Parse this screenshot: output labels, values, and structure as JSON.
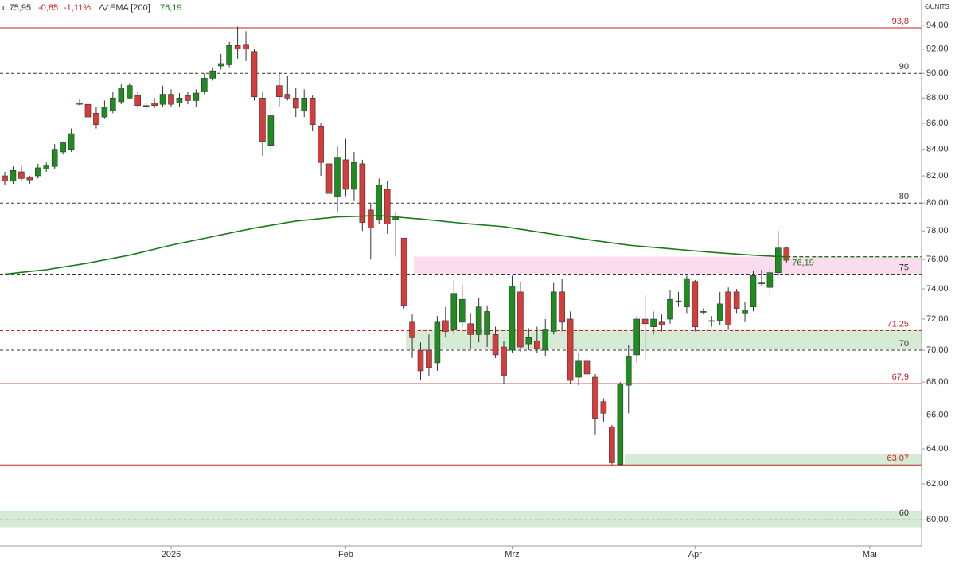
{
  "chart_data": {
    "type": "candlestick",
    "header": {
      "close_label": "c 75,95",
      "change": "-0,85",
      "change_pct": "-1,11%"
    },
    "y_axis_label": "€/UNITS",
    "log_scale": true,
    "ylim": [
      58.6,
      96.2
    ],
    "yticks": [
      {
        "value": 94,
        "label": "94,00"
      },
      {
        "value": 92,
        "label": "92,00"
      },
      {
        "value": 90,
        "label": "90,00"
      },
      {
        "value": 88,
        "label": "88,00"
      },
      {
        "value": 86,
        "label": "86,00"
      },
      {
        "value": 84,
        "label": "84,00"
      },
      {
        "value": 82,
        "label": "82,00"
      },
      {
        "value": 80,
        "label": "80,00"
      },
      {
        "value": 78,
        "label": "78,00"
      },
      {
        "value": 76,
        "label": "76,00"
      },
      {
        "value": 74,
        "label": "74,00"
      },
      {
        "value": 72,
        "label": "72,00"
      },
      {
        "value": 70,
        "label": "70,00"
      },
      {
        "value": 68,
        "label": "68,00"
      },
      {
        "value": 66,
        "label": "66,00"
      },
      {
        "value": 64,
        "label": "64,00"
      },
      {
        "value": 62,
        "label": "62,00"
      },
      {
        "value": 60,
        "label": "60,00"
      }
    ],
    "categories": [
      null,
      null,
      null,
      null,
      null,
      null,
      null,
      null,
      null,
      null,
      null,
      null,
      null,
      null,
      null,
      null,
      null,
      null,
      null,
      null,
      "2026",
      null,
      null,
      null,
      null,
      null,
      null,
      null,
      null,
      null,
      null,
      null,
      null,
      null,
      null,
      null,
      null,
      null,
      null,
      null,
      null,
      "Feb",
      null,
      null,
      null,
      null,
      null,
      null,
      null,
      null,
      null,
      null,
      null,
      null,
      null,
      null,
      null,
      null,
      null,
      null,
      null,
      "Mrz",
      null,
      null,
      null,
      null,
      null,
      null,
      null,
      null,
      null,
      null,
      null,
      null,
      null,
      null,
      null,
      null,
      null,
      null,
      null,
      null,
      null,
      "Apr",
      null,
      null,
      null,
      null,
      null,
      null,
      null,
      null,
      null,
      null,
      null,
      null,
      null,
      null,
      null,
      null,
      null,
      null,
      null,
      null,
      "Mai",
      null,
      null,
      null,
      null,
      null,
      null
    ],
    "up_color": "#1e8c1e",
    "down_color": "#d63c3c",
    "open": [
      82.0,
      81.6,
      82.3,
      81.9,
      82.0,
      82.5,
      82.7,
      83.8,
      84.0,
      87.5,
      87.5,
      86.8,
      86.5,
      87.0,
      87.7,
      88.0,
      88.2,
      87.4,
      87.6,
      87.5,
      88.3,
      87.6,
      88.2,
      87.8,
      88.5,
      89.6,
      90.6,
      90.7,
      92.3,
      92.4,
      91.8,
      88.0,
      84.3,
      89.0,
      88.3,
      88.0,
      87.0,
      88.0,
      85.8,
      82.9,
      80.5,
      83.2,
      81.0,
      82.9,
      79.5,
      78.8,
      81.0,
      78.8,
      77.5,
      71.8,
      70.0,
      70.0,
      69.2,
      71.9,
      71.3,
      71.8,
      71.7,
      71.0,
      71.0,
      71.0,
      70.2,
      70.0,
      73.8,
      70.4,
      70.6,
      70.0,
      71.2,
      73.8,
      72.0,
      68.3,
      69.3,
      68.3,
      66.8,
      65.3,
      63.1,
      67.8,
      69.7,
      72.0,
      71.5,
      71.8,
      72.0,
      73.2,
      72.8,
      74.5,
      72.5,
      71.9,
      71.9,
      73.8,
      73.8,
      72.4,
      72.8,
      74.4,
      74.1,
      75.1,
      76.8,
      null,
      null,
      null,
      null,
      null,
      null,
      null,
      null,
      null,
      null,
      null,
      null,
      null,
      null,
      null,
      null
    ],
    "high": [
      82.3,
      82.7,
      82.8,
      82.0,
      82.9,
      83.0,
      84.4,
      84.6,
      85.6,
      87.9,
      88.5,
      87.3,
      87.8,
      88.5,
      89.1,
      89.2,
      88.5,
      87.6,
      88.0,
      89.0,
      88.7,
      88.4,
      88.5,
      88.7,
      90.0,
      90.5,
      91.6,
      92.6,
      93.9,
      93.5,
      92.0,
      88.5,
      87.5,
      90.1,
      89.8,
      88.8,
      88.7,
      88.2,
      86.0,
      83.0,
      84.2,
      84.8,
      83.8,
      83.2,
      80.0,
      81.8,
      81.6,
      79.3,
      77.5,
      72.3,
      70.5,
      71.0,
      72.2,
      72.8,
      74.6,
      74.3,
      72.4,
      73.4,
      72.9,
      71.5,
      70.6,
      74.9,
      74.5,
      71.4,
      71.5,
      72.0,
      74.4,
      74.7,
      72.5,
      69.8,
      69.8,
      68.5,
      67.0,
      65.4,
      68.0,
      70.3,
      72.2,
      73.6,
      72.5,
      72.3,
      73.9,
      73.8,
      74.9,
      74.6,
      72.7,
      72.2,
      73.8,
      74.1,
      74.0,
      73.1,
      75.2,
      75.3,
      75.5,
      78.0,
      76.9,
      null,
      null,
      null,
      null,
      null,
      null,
      null,
      null,
      null,
      null,
      null,
      null,
      null,
      null,
      null,
      null
    ],
    "low": [
      81.3,
      81.4,
      81.6,
      81.4,
      81.8,
      82.3,
      82.5,
      83.6,
      83.8,
      87.4,
      86.2,
      85.6,
      86.4,
      86.8,
      87.5,
      87.9,
      87.2,
      87.1,
      87.2,
      87.3,
      87.3,
      87.3,
      87.5,
      87.3,
      88.3,
      89.4,
      90.3,
      90.5,
      91.2,
      91.0,
      87.8,
      83.5,
      83.8,
      87.3,
      87.8,
      86.5,
      86.5,
      85.4,
      82.0,
      80.3,
      79.3,
      80.5,
      80.2,
      78.0,
      76.0,
      78.5,
      77.8,
      76.2,
      72.7,
      69.5,
      68.1,
      68.4,
      68.7,
      70.8,
      71.0,
      71.5,
      70.1,
      70.5,
      70.2,
      69.5,
      67.9,
      69.8,
      69.9,
      70.0,
      69.8,
      69.6,
      71.0,
      71.2,
      67.9,
      67.8,
      68.0,
      64.8,
      65.6,
      63.1,
      63.0,
      66.1,
      69.2,
      69.3,
      71.0,
      71.2,
      71.7,
      72.8,
      72.4,
      71.2,
      72.3,
      71.5,
      71.6,
      71.3,
      72.4,
      71.8,
      72.5,
      74.2,
      73.5,
      74.9,
      75.8,
      null,
      null,
      null,
      null,
      null,
      null,
      null,
      null,
      null,
      null,
      null,
      null,
      null,
      null,
      null,
      null
    ],
    "close": [
      81.6,
      82.4,
      81.8,
      81.7,
      82.6,
      82.8,
      84.0,
      84.5,
      85.2,
      87.6,
      86.5,
      85.9,
      87.3,
      88.0,
      88.8,
      89.0,
      87.4,
      87.4,
      87.4,
      88.3,
      87.5,
      88.0,
      87.8,
      88.4,
      89.6,
      90.2,
      90.8,
      92.3,
      92.0,
      92.0,
      88.1,
      84.6,
      86.6,
      88.1,
      88.0,
      87.2,
      88.0,
      85.9,
      83.0,
      80.7,
      83.4,
      81.0,
      83.0,
      78.6,
      78.2,
      81.3,
      78.5,
      79.0,
      72.9,
      70.8,
      68.7,
      68.9,
      71.8,
      71.2,
      73.7,
      73.3,
      71.0,
      72.8,
      72.5,
      69.7,
      68.4,
      74.2,
      70.2,
      70.8,
      70.1,
      71.3,
      73.8,
      71.8,
      68.1,
      69.3,
      68.5,
      65.8,
      66.1,
      63.2,
      67.9,
      69.6,
      72.0,
      71.7,
      72.0,
      71.6,
      73.3,
      73.2,
      74.7,
      71.5,
      72.5,
      71.9,
      73.0,
      71.6,
      72.7,
      72.6,
      74.9,
      74.4,
      75.1,
      76.8,
      75.95,
      null,
      null,
      null,
      null,
      null,
      null,
      null,
      null,
      null,
      null,
      null,
      null,
      null,
      null,
      null,
      null
    ],
    "ema": {
      "name": "EMA [200]",
      "color": "#1a7a1a",
      "last": {
        "value": 76.19,
        "label": "76,19"
      },
      "values": [
        75.0,
        75.06,
        75.12,
        75.18,
        75.24,
        75.3,
        75.39,
        75.48,
        75.57,
        75.66,
        75.75,
        75.86,
        75.97,
        76.08,
        76.19,
        76.3,
        76.44,
        76.58,
        76.72,
        76.86,
        77.0,
        77.12,
        77.24,
        77.36,
        77.48,
        77.6,
        77.72,
        77.84,
        77.96,
        78.08,
        78.2,
        78.3,
        78.4,
        78.5,
        78.6,
        78.7,
        78.76,
        78.82,
        78.88,
        78.94,
        79.0,
        79.02,
        79.04,
        79.06,
        79.08,
        79.1,
        79.05,
        79.0,
        78.95,
        78.9,
        78.85,
        78.79,
        78.73,
        78.67,
        78.61,
        78.55,
        78.5,
        78.45,
        78.4,
        78.35,
        78.3,
        78.21,
        78.12,
        78.03,
        77.94,
        77.85,
        77.76,
        77.67,
        77.58,
        77.49,
        77.4,
        77.32,
        77.24,
        77.16,
        77.08,
        77.0,
        76.95,
        76.9,
        76.85,
        76.8,
        76.75,
        76.7,
        76.65,
        76.6,
        76.55,
        76.5,
        76.46,
        76.42,
        76.38,
        76.34,
        76.3,
        76.27,
        76.24,
        76.21,
        76.19,
        null,
        null,
        null,
        null,
        null,
        null,
        null,
        null,
        null,
        null,
        null,
        null,
        null,
        null,
        null,
        null
      ]
    },
    "levels": [
      {
        "value": 93.8,
        "label": "93,8",
        "style": "solid",
        "color": "#cc1f1f"
      },
      {
        "value": 90,
        "label": "90",
        "style": "dashed",
        "color": "#333333"
      },
      {
        "value": 80,
        "label": "80",
        "style": "dashed",
        "color": "#333333"
      },
      {
        "value": 75,
        "label": "75",
        "style": "dashed",
        "color": "#333333"
      },
      {
        "value": 71.25,
        "label": "71,25",
        "style": "dashed",
        "color": "#cc1f1f"
      },
      {
        "value": 70,
        "label": "70",
        "style": "dashed",
        "color": "#333333"
      },
      {
        "value": 67.9,
        "label": "67,9",
        "style": "solid",
        "color": "#cc1f1f"
      },
      {
        "value": 63.07,
        "label": "63,07",
        "style": "solid",
        "color": "#cc1f1f"
      },
      {
        "value": 60,
        "label": "60",
        "style": "dashed",
        "color": "#333333"
      }
    ],
    "zones": [
      {
        "low": 75.0,
        "high": 76.2,
        "color": "#fbdcef"
      },
      {
        "low": 70.1,
        "high": 71.3,
        "color": "#d6ebd6"
      },
      {
        "low": 63.07,
        "high": 63.7,
        "color": "#d6ebd6"
      },
      {
        "low": 59.6,
        "high": 60.5,
        "color": "#d6ebd6"
      }
    ]
  }
}
